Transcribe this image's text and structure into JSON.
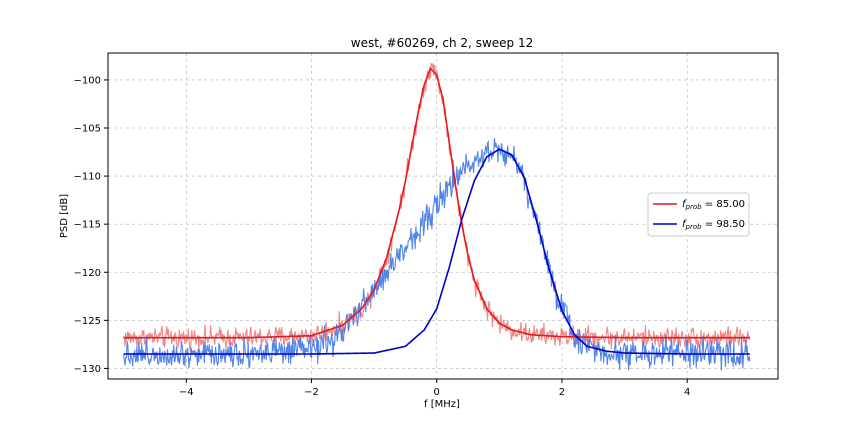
{
  "chart_data": {
    "type": "line",
    "title": "west, #60269, ch 2, sweep 12",
    "xlabel": "f [MHz]",
    "ylabel": "PSD [dB]",
    "xlim": [
      -5.25,
      5.45
    ],
    "ylim": [
      -131.1,
      -97.2
    ],
    "xticks": [
      -4,
      -2,
      0,
      2,
      4
    ],
    "yticks": [
      -130,
      -125,
      -120,
      -115,
      -110,
      -105,
      -100
    ],
    "grid": true,
    "legend_position": "right",
    "series": [
      {
        "name": "f_prob = 85.00",
        "legend_main": "f",
        "legend_sub": "prob",
        "legend_value": " = 85.00",
        "kind": "fit",
        "color": "#e41a1c",
        "raw_color": "#f08080",
        "x": [
          -5.0,
          -3.0,
          -2.0,
          -1.5,
          -1.2,
          -1.0,
          -0.8,
          -0.6,
          -0.5,
          -0.4,
          -0.3,
          -0.2,
          -0.1,
          0.0,
          0.1,
          0.2,
          0.3,
          0.4,
          0.5,
          0.6,
          0.8,
          1.0,
          1.2,
          1.5,
          2.0,
          3.0,
          5.0
        ],
        "y": [
          -126.8,
          -126.8,
          -126.6,
          -125.5,
          -123.8,
          -121.8,
          -118.5,
          -113.5,
          -110.5,
          -107.0,
          -103.5,
          -100.5,
          -98.8,
          -99.5,
          -102.0,
          -106.5,
          -111.0,
          -115.0,
          -118.3,
          -120.8,
          -123.8,
          -125.3,
          -126.0,
          -126.5,
          -126.7,
          -126.8,
          -126.8
        ]
      },
      {
        "name": "f_prob = 98.50",
        "legend_main": "f",
        "legend_sub": "prob",
        "legend_value": " = 98.50",
        "kind": "fit",
        "color": "#0000c8",
        "raw_color": "#4a7ee8",
        "x": [
          -5.0,
          -2.0,
          -1.0,
          -0.5,
          -0.2,
          0.0,
          0.2,
          0.4,
          0.6,
          0.8,
          1.0,
          1.2,
          1.4,
          1.6,
          1.8,
          2.0,
          2.2,
          2.4,
          2.7,
          3.0,
          4.0,
          5.0
        ],
        "y": [
          -128.5,
          -128.5,
          -128.4,
          -127.7,
          -126.0,
          -123.8,
          -119.5,
          -114.5,
          -110.5,
          -108.0,
          -107.2,
          -107.8,
          -110.2,
          -114.8,
          -119.8,
          -124.0,
          -126.5,
          -127.7,
          -128.2,
          -128.4,
          -128.5,
          -128.5
        ]
      }
    ],
    "raw_series": [
      {
        "name": "red raw PSD",
        "color": "#f08080",
        "x": [
          -5.0,
          -3.0,
          -2.0,
          -1.5,
          -1.2,
          -1.0,
          -0.8,
          -0.6,
          -0.5,
          -0.4,
          -0.3,
          -0.2,
          -0.1,
          0.0,
          0.1,
          0.2,
          0.3,
          0.4,
          0.5,
          0.6,
          0.8,
          1.0,
          1.2,
          1.5,
          2.0,
          3.0,
          5.0
        ],
        "y": [
          -126.8,
          -126.8,
          -126.6,
          -125.5,
          -123.8,
          -121.8,
          -118.5,
          -113.5,
          -110.5,
          -107.0,
          -103.5,
          -100.5,
          -98.6,
          -99.5,
          -102.0,
          -106.5,
          -111.0,
          -115.0,
          -118.3,
          -120.8,
          -123.8,
          -125.3,
          -126.0,
          -126.5,
          -126.7,
          -126.8,
          -126.8
        ],
        "noise": 0.55
      },
      {
        "name": "blue raw PSD",
        "color": "#4a7ee8",
        "x": [
          -5.0,
          -2.2,
          -1.8,
          -1.6,
          -1.4,
          -1.0,
          -0.8,
          -0.6,
          -0.4,
          -0.2,
          0.0,
          0.2,
          0.4,
          0.6,
          0.8,
          1.0,
          1.2,
          1.4,
          1.6,
          1.8,
          2.0,
          2.2,
          2.4,
          2.7,
          3.0,
          4.0,
          5.0
        ],
        "y": [
          -128.5,
          -128.3,
          -127.5,
          -126.8,
          -125.4,
          -121.9,
          -120.1,
          -118.3,
          -116.5,
          -114.7,
          -112.9,
          -111.3,
          -109.5,
          -108.2,
          -107.4,
          -107.1,
          -107.9,
          -110.2,
          -114.8,
          -119.8,
          -124.0,
          -126.5,
          -127.7,
          -128.2,
          -128.4,
          -128.5,
          -128.5
        ],
        "noise": 0.75
      }
    ]
  }
}
